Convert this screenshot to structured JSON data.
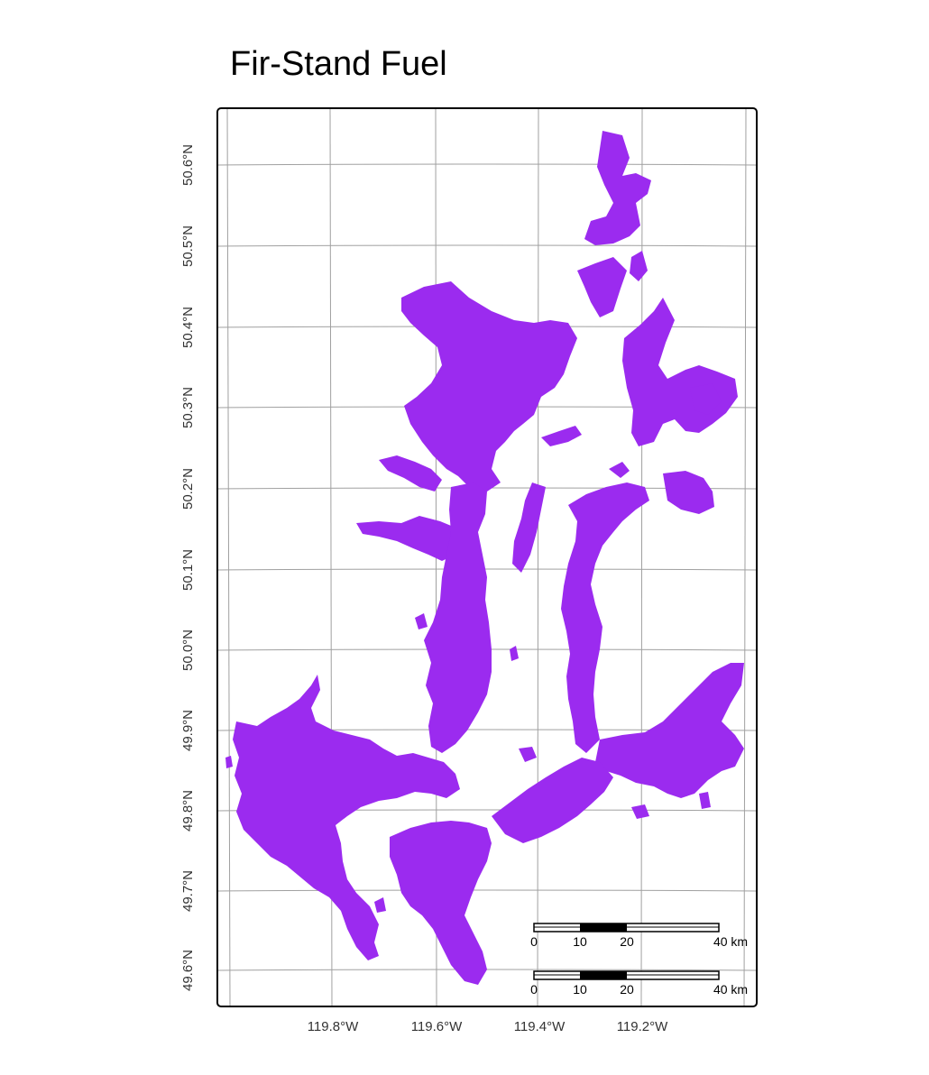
{
  "title": "Fir-Stand Fuel",
  "map": {
    "fill_color": "#9b2bef",
    "grid_color": "#a0a0a0",
    "lon_ticks": [
      "119.8°W",
      "119.6°W",
      "119.4°W",
      "119.2°W"
    ],
    "lat_ticks": [
      "50.6°N",
      "50.5°N",
      "50.4°N",
      "50.3°N",
      "50.2°N",
      "50.1°N",
      "50.0°N",
      "49.9°N",
      "49.8°N",
      "49.7°N",
      "49.6°N"
    ]
  },
  "scalebars": [
    {
      "labels": [
        "0",
        "10",
        "20",
        "40 km"
      ]
    },
    {
      "labels": [
        "0",
        "10",
        "20",
        "40 km"
      ]
    }
  ]
}
